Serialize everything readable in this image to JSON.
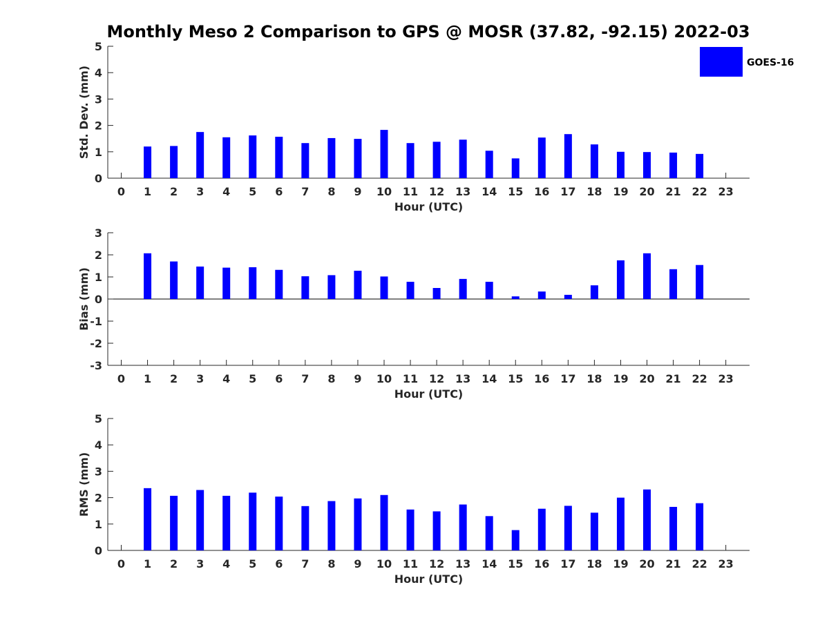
{
  "chart_data": {
    "type": "bar",
    "title": "Monthly Meso 2 Comparison to GPS @ MOSR (37.82, -92.15) 2022-03",
    "legend": {
      "label": "GOES-16",
      "placement": "top-right"
    },
    "bar_color": "#0000ff",
    "categories": [
      "0",
      "1",
      "2",
      "3",
      "4",
      "5",
      "6",
      "7",
      "8",
      "9",
      "10",
      "11",
      "12",
      "13",
      "14",
      "15",
      "16",
      "17",
      "18",
      "19",
      "20",
      "21",
      "22",
      "23"
    ],
    "xlabel": "Hour (UTC)",
    "panels": [
      {
        "id": "stddev",
        "ylabel": "Std. Dev. (mm)",
        "ylim": [
          0,
          5
        ],
        "yticks": [
          "0",
          "1",
          "2",
          "3",
          "4",
          "5"
        ],
        "values": [
          null,
          1.2,
          1.22,
          1.75,
          1.55,
          1.62,
          1.57,
          1.33,
          1.52,
          1.49,
          1.83,
          1.33,
          1.38,
          1.46,
          1.04,
          0.75,
          1.54,
          1.67,
          1.28,
          1.0,
          0.99,
          0.97,
          0.92,
          null
        ]
      },
      {
        "id": "bias",
        "ylabel": "Bias (mm)",
        "ylim": [
          -3,
          3
        ],
        "yticks": [
          "-3",
          "-2",
          "-1",
          "0",
          "1",
          "2",
          "3"
        ],
        "values": [
          null,
          2.07,
          1.7,
          1.47,
          1.42,
          1.44,
          1.32,
          1.03,
          1.08,
          1.28,
          1.02,
          0.78,
          0.5,
          0.91,
          0.78,
          0.12,
          0.34,
          0.19,
          0.62,
          1.75,
          2.07,
          1.35,
          1.54,
          null
        ]
      },
      {
        "id": "rms",
        "ylabel": "RMS (mm)",
        "ylim": [
          0,
          5
        ],
        "yticks": [
          "0",
          "1",
          "2",
          "3",
          "4",
          "5"
        ],
        "values": [
          null,
          2.36,
          2.07,
          2.29,
          2.07,
          2.19,
          2.04,
          1.68,
          1.87,
          1.97,
          2.1,
          1.55,
          1.48,
          1.74,
          1.3,
          0.77,
          1.58,
          1.69,
          1.43,
          2.0,
          2.31,
          1.65,
          1.79,
          null
        ]
      }
    ]
  }
}
